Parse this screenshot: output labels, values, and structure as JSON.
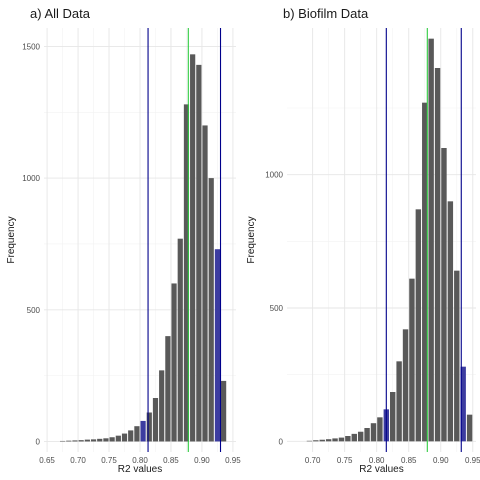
{
  "chart_data": [
    {
      "type": "bar",
      "title": "a) All Data",
      "xlabel": "R2 values",
      "ylabel": "Frequency",
      "xlim": [
        0.645,
        0.955
      ],
      "ylim": [
        -40,
        1570
      ],
      "xticks": [
        0.65,
        0.7,
        0.75,
        0.8,
        0.85,
        0.9,
        0.95
      ],
      "xtick_labels": [
        "0.65",
        "0.70",
        "0.75",
        "0.80",
        "0.85",
        "0.90",
        "0.95"
      ],
      "yticks": [
        0,
        500,
        1000,
        1500
      ],
      "ytick_labels": [
        "0",
        "500",
        "1000",
        "1500"
      ],
      "grid": true,
      "bin_width": 0.01,
      "x": [
        0.675,
        0.685,
        0.695,
        0.705,
        0.715,
        0.725,
        0.735,
        0.745,
        0.755,
        0.765,
        0.775,
        0.785,
        0.795,
        0.805,
        0.815,
        0.825,
        0.835,
        0.845,
        0.855,
        0.865,
        0.875,
        0.885,
        0.895,
        0.905,
        0.915,
        0.925,
        0.935
      ],
      "values": [
        2,
        3,
        4,
        5,
        7,
        8,
        10,
        12,
        16,
        22,
        30,
        42,
        58,
        78,
        110,
        165,
        270,
        400,
        600,
        770,
        1280,
        1470,
        1430,
        1200,
        1000,
        730,
        230
      ],
      "highlight_bins": [
        0.805,
        0.925
      ],
      "bar_color": "#595959",
      "highlight_color": "#3c3ca0",
      "vlines": [
        {
          "x": 0.813,
          "color": "#00008b"
        },
        {
          "x": 0.878,
          "color": "#2ecc40"
        },
        {
          "x": 0.93,
          "color": "#00008b"
        }
      ]
    },
    {
      "type": "bar",
      "title": "b) Biofilm Data",
      "xlabel": "R2 values",
      "ylabel": "Frequency",
      "xlim": [
        0.66,
        0.955
      ],
      "ylim": [
        -40,
        1550
      ],
      "xticks": [
        0.7,
        0.75,
        0.8,
        0.85,
        0.9,
        0.95
      ],
      "xtick_labels": [
        "0.70",
        "0.75",
        "0.80",
        "0.85",
        "0.90",
        "0.95"
      ],
      "yticks": [
        0,
        500,
        1000
      ],
      "ytick_labels": [
        "0",
        "500",
        "1000"
      ],
      "grid": true,
      "bin_width": 0.01,
      "x": [
        0.695,
        0.705,
        0.715,
        0.725,
        0.735,
        0.745,
        0.755,
        0.765,
        0.775,
        0.785,
        0.795,
        0.805,
        0.815,
        0.825,
        0.835,
        0.845,
        0.855,
        0.865,
        0.875,
        0.885,
        0.895,
        0.905,
        0.915,
        0.925,
        0.935,
        0.945
      ],
      "values": [
        2,
        4,
        6,
        8,
        11,
        14,
        20,
        28,
        36,
        50,
        68,
        90,
        120,
        185,
        300,
        420,
        610,
        870,
        1270,
        1510,
        1400,
        1100,
        900,
        640,
        280,
        100
      ],
      "highlight_bins": [
        0.815,
        0.935
      ],
      "bar_color": "#595959",
      "highlight_color": "#3c3ca0",
      "vlines": [
        {
          "x": 0.815,
          "color": "#00008b"
        },
        {
          "x": 0.879,
          "color": "#2ecc40"
        },
        {
          "x": 0.932,
          "color": "#00008b"
        }
      ]
    }
  ]
}
